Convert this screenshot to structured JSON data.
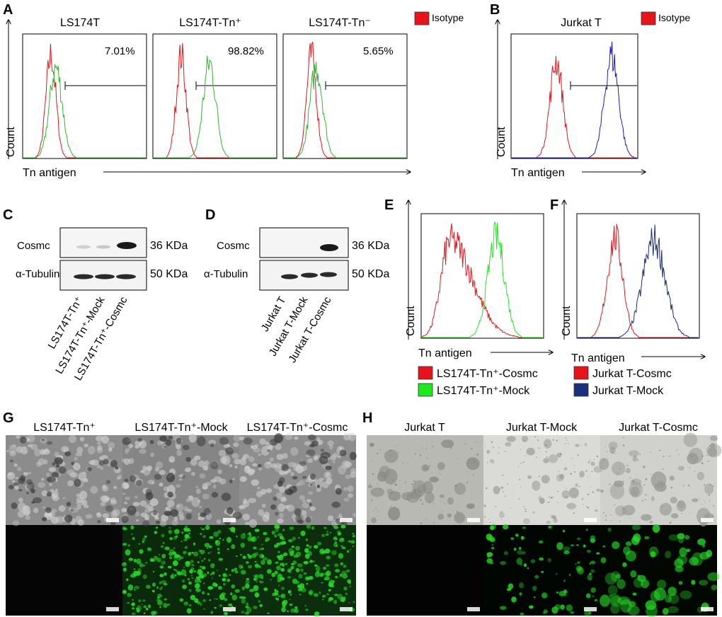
{
  "panels": {
    "A": {
      "label": "A",
      "subplots": [
        {
          "title": "LS174T",
          "percent": "7.01%"
        },
        {
          "title": "LS174T-Tn⁺",
          "percent": "98.82%"
        },
        {
          "title": "LS174T-Tn⁻",
          "percent": "5.65%"
        }
      ],
      "ylabel": "Count",
      "xlabel": "Tn antigen",
      "legend": "Isotype"
    },
    "B": {
      "label": "B",
      "title": "Jurkat T",
      "ylabel": "Count",
      "xlabel": "Tn antigen",
      "legend": "Isotype"
    },
    "C": {
      "label": "C",
      "row1": "Cosmc",
      "row2": "α-Tubulin",
      "kda1": "36 KDa",
      "kda2": "50 KDa",
      "lanes": [
        "LS174T-Tn⁺",
        "LS174T-Tn⁺-Mock",
        "LS174T-Tn⁺-Cosmc"
      ]
    },
    "D": {
      "label": "D",
      "row1": "Cosmc",
      "row2": "α-Tubulin",
      "kda1": "36 KDa",
      "kda2": "50 KDa",
      "lanes": [
        "Jurkat T",
        "Jurkat T-Mock",
        "Jurkat T-Cosmc"
      ]
    },
    "E": {
      "label": "E",
      "ylabel": "Count",
      "xlabel": "Tn antigen",
      "legend": [
        "LS174T-Tn⁺-Cosmc",
        "LS174T-Tn⁺-Mock"
      ]
    },
    "F": {
      "label": "F",
      "ylabel": "Count",
      "xlabel": "Tn antigen",
      "legend": [
        "Jurkat T-Cosmc",
        "Jurkat T-Mock"
      ]
    },
    "G": {
      "label": "G",
      "columns": [
        "LS174T-Tn⁺",
        "LS174T-Tn⁺-Mock",
        "LS174T-Tn⁺-Cosmc"
      ]
    },
    "H": {
      "label": "H",
      "columns": [
        "Jurkat T",
        "Jurkat T-Mock",
        "Jurkat T-Cosmc"
      ]
    }
  },
  "colors": {
    "isotype_red": "#e8141b",
    "green": "#2fb82f",
    "blue": "#1a1ad0",
    "mock_green": "#1ee81e",
    "navy": "#1c2f7a",
    "fluor": "#27d827"
  }
}
